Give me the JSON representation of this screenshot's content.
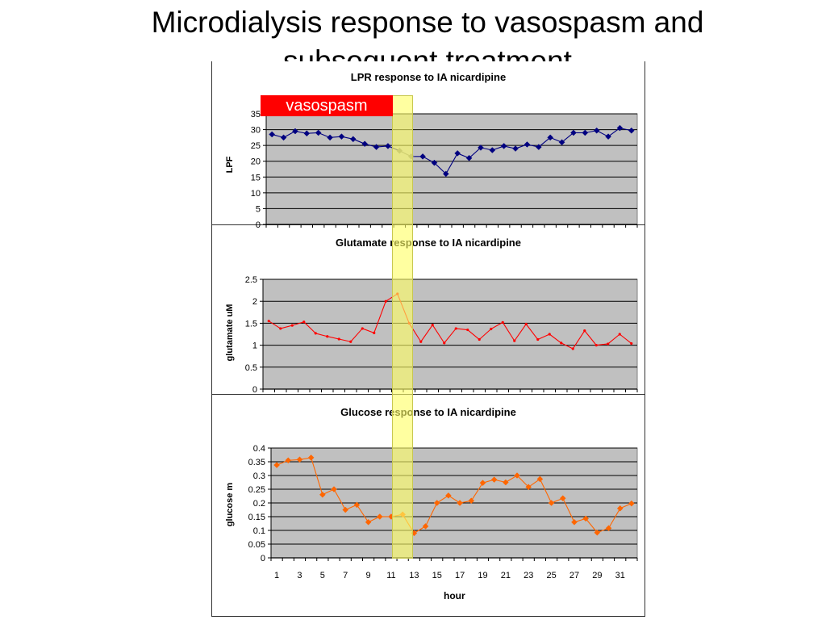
{
  "slide": {
    "title": "Microdialysis response to vasospasm and subsequent treatment",
    "vasospasm_label": "vasospasm"
  },
  "chart_data": [
    {
      "type": "line",
      "title": "LPR response to IA nicardipine",
      "ylabel": "LPF",
      "xlabel": "",
      "ylim": [
        0,
        35
      ],
      "yticks": [
        "0",
        "5",
        "10",
        "15",
        "20",
        "25",
        "30",
        "35"
      ],
      "x": [
        1,
        2,
        3,
        4,
        5,
        6,
        7,
        8,
        9,
        10,
        11,
        12,
        13,
        14,
        15,
        16,
        17,
        18,
        19,
        20,
        21,
        22,
        23,
        24,
        25,
        26,
        27,
        28,
        29,
        30,
        31,
        32
      ],
      "series": [
        {
          "name": "",
          "color": "#000080",
          "values": [
            28.5,
            27.5,
            29.5,
            28.8,
            29,
            27.5,
            27.8,
            27,
            25.5,
            24.5,
            24.8,
            23.3,
            21.5,
            21.5,
            19.5,
            16,
            22.5,
            21,
            24.3,
            23.5,
            24.8,
            24,
            25.3,
            24.5,
            27.5,
            26,
            29,
            29,
            29.7,
            27.8,
            30.5,
            29.7
          ],
          "highlight_points": [
            12,
            13
          ],
          "highlight_color": "#808080"
        }
      ],
      "plot_bg": "#c0c0c0",
      "grid": true
    },
    {
      "type": "line",
      "title": "Glutamate response to IA nicardipine",
      "ylabel": "glutamate uM",
      "xlabel": "",
      "ylim": [
        0,
        2.5
      ],
      "yticks": [
        "0",
        "0.5",
        "1",
        "1.5",
        "2",
        "2.5"
      ],
      "x": [
        1,
        2,
        3,
        4,
        5,
        6,
        7,
        8,
        9,
        10,
        11,
        12,
        13,
        14,
        15,
        16,
        17,
        18,
        19,
        20,
        21,
        22,
        23,
        24,
        25,
        26,
        27,
        28,
        29,
        30,
        31,
        32
      ],
      "series": [
        {
          "name": "",
          "color": "#ff0000",
          "values": [
            1.55,
            1.38,
            1.45,
            1.53,
            1.27,
            1.2,
            1.14,
            1.08,
            1.38,
            1.28,
            2,
            2.17,
            1.5,
            1.08,
            1.46,
            1.05,
            1.38,
            1.35,
            1.13,
            1.37,
            1.52,
            1.1,
            1.48,
            1.13,
            1.25,
            1.05,
            0.92,
            1.33,
            1.0,
            1.03,
            1.25,
            1.04
          ]
        }
      ],
      "plot_bg": "#c0c0c0",
      "grid": true
    },
    {
      "type": "line",
      "title": "Glucose response to IA nicardipine",
      "ylabel": "glucose m",
      "xlabel": "hour",
      "ylim": [
        0,
        0.4
      ],
      "yticks": [
        "0",
        "0.05",
        "0.1",
        "0.15",
        "0.2",
        "0.25",
        "0.3",
        "0.35",
        "0.4"
      ],
      "xtick_labels": [
        "1",
        "3",
        "5",
        "7",
        "9",
        "11",
        "13",
        "15",
        "17",
        "19",
        "21",
        "23",
        "25",
        "27",
        "29",
        "31"
      ],
      "x": [
        1,
        2,
        3,
        4,
        5,
        6,
        7,
        8,
        9,
        10,
        11,
        12,
        13,
        14,
        15,
        16,
        17,
        18,
        19,
        20,
        21,
        22,
        23,
        24,
        25,
        26,
        27,
        28,
        29,
        30,
        31,
        32
      ],
      "series": [
        {
          "name": "",
          "color": "#ff6600",
          "values": [
            0.338,
            0.355,
            0.358,
            0.365,
            0.23,
            0.25,
            0.175,
            0.193,
            0.13,
            0.15,
            0.15,
            0.158,
            0.09,
            0.115,
            0.2,
            0.227,
            0.2,
            0.208,
            0.273,
            0.285,
            0.275,
            0.3,
            0.258,
            0.287,
            0.2,
            0.217,
            0.13,
            0.143,
            0.092,
            0.108,
            0.18,
            0.198
          ]
        }
      ],
      "plot_bg": "#c0c0c0",
      "grid": true
    }
  ]
}
